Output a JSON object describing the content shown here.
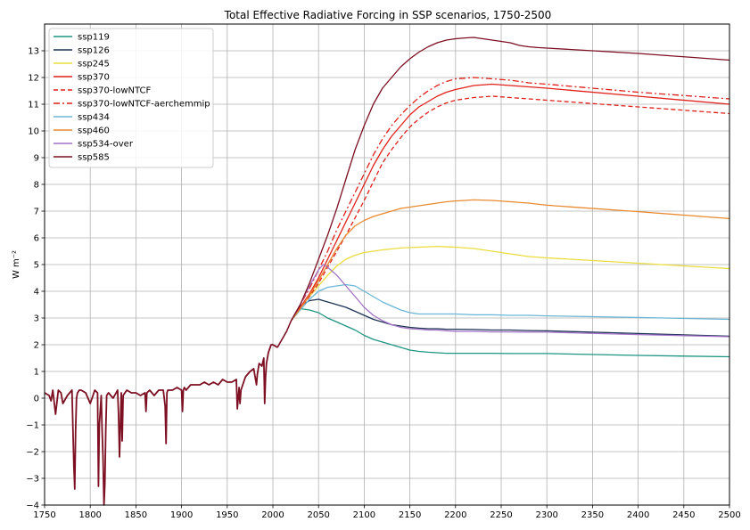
{
  "chart_data": {
    "type": "line",
    "title": "Total Effective Radiative Forcing in SSP scenarios, 1750-2500",
    "xlabel": "",
    "ylabel": "W m⁻²",
    "xlim": [
      1750,
      2500
    ],
    "ylim": [
      -4,
      14
    ],
    "xticks": [
      1750,
      1800,
      1850,
      1900,
      1950,
      2000,
      2050,
      2100,
      2150,
      2200,
      2250,
      2300,
      2350,
      2400,
      2450,
      2500
    ],
    "yticks": [
      -4,
      -3,
      -2,
      -1,
      0,
      1,
      2,
      3,
      4,
      5,
      6,
      7,
      8,
      9,
      10,
      11,
      12,
      13
    ],
    "ytick_labels": [
      "−4",
      "−3",
      "−2",
      "−1",
      "0",
      "1",
      "2",
      "3",
      "4",
      "5",
      "6",
      "7",
      "8",
      "9",
      "10",
      "11",
      "12",
      "13"
    ],
    "grid": true,
    "legend_position": "upper-left",
    "historical": {
      "x": [
        1750,
        1755,
        1757,
        1759,
        1762,
        1765,
        1768,
        1770,
        1775,
        1780,
        1782,
        1783,
        1784,
        1785,
        1786,
        1788,
        1790,
        1795,
        1800,
        1805,
        1808,
        1809,
        1810,
        1812,
        1813,
        1814,
        1815,
        1816,
        1817,
        1818,
        1820,
        1825,
        1830,
        1831,
        1832,
        1834,
        1835,
        1836,
        1838,
        1840,
        1845,
        1850,
        1855,
        1860,
        1861,
        1862,
        1865,
        1870,
        1875,
        1880,
        1882,
        1883,
        1884,
        1885,
        1886,
        1890,
        1895,
        1900,
        1901,
        1902,
        1903,
        1905,
        1910,
        1915,
        1920,
        1925,
        1930,
        1935,
        1940,
        1945,
        1950,
        1955,
        1960,
        1961,
        1963,
        1964,
        1965,
        1968,
        1970,
        1975,
        1979,
        1982,
        1983,
        1985,
        1988,
        1990,
        1991,
        1992,
        1993,
        1995,
        1998,
        2000,
        2005
      ],
      "y": [
        0.2,
        0.1,
        -0.1,
        0.3,
        -0.6,
        0.3,
        0.2,
        -0.2,
        0.1,
        0.3,
        -2.5,
        -3.4,
        -1.2,
        0.0,
        0.2,
        0.3,
        0.3,
        0.2,
        -0.2,
        0.3,
        0.2,
        -3.3,
        -1.0,
        0.1,
        -1.2,
        -2.2,
        -4.0,
        -3.2,
        -1.2,
        0.1,
        0.2,
        0.0,
        0.3,
        -0.6,
        -2.2,
        0.2,
        -1.6,
        0.1,
        0.2,
        0.3,
        0.2,
        0.2,
        0.1,
        0.2,
        -0.5,
        0.2,
        0.3,
        0.1,
        0.3,
        0.3,
        -0.3,
        -1.7,
        0.2,
        0.3,
        0.3,
        0.3,
        0.4,
        0.3,
        -0.5,
        0.3,
        0.4,
        0.3,
        0.5,
        0.5,
        0.5,
        0.6,
        0.5,
        0.6,
        0.5,
        0.7,
        0.6,
        0.6,
        0.7,
        -0.4,
        0.4,
        -0.2,
        0.3,
        0.6,
        0.8,
        1.0,
        1.1,
        0.5,
        0.9,
        1.3,
        1.2,
        1.5,
        -0.2,
        0.8,
        1.3,
        1.7,
        2.0,
        2.0,
        1.9
      ]
    },
    "series": [
      {
        "name": "ssp119",
        "color": "#1e9583",
        "dash": "solid",
        "x": [
          2005,
          2010,
          2015,
          2020,
          2025,
          2030,
          2040,
          2050,
          2060,
          2070,
          2080,
          2090,
          2100,
          2110,
          2120,
          2130,
          2140,
          2150,
          2160,
          2170,
          2180,
          2190,
          2200,
          2220,
          2240,
          2260,
          2280,
          2300,
          2400,
          2500
        ],
        "y": [
          1.9,
          2.2,
          2.5,
          2.9,
          3.15,
          3.35,
          3.3,
          3.2,
          3.0,
          2.85,
          2.7,
          2.55,
          2.35,
          2.2,
          2.1,
          2.0,
          1.9,
          1.8,
          1.75,
          1.72,
          1.7,
          1.68,
          1.68,
          1.68,
          1.68,
          1.67,
          1.67,
          1.67,
          1.6,
          1.55
        ]
      },
      {
        "name": "ssp126",
        "color": "#1d3354",
        "dash": "solid",
        "x": [
          2005,
          2010,
          2015,
          2020,
          2025,
          2030,
          2040,
          2050,
          2060,
          2070,
          2080,
          2090,
          2100,
          2110,
          2120,
          2130,
          2140,
          2150,
          2160,
          2170,
          2180,
          2190,
          2200,
          2220,
          2240,
          2260,
          2280,
          2300,
          2400,
          2500
        ],
        "y": [
          1.9,
          2.2,
          2.5,
          2.9,
          3.2,
          3.45,
          3.65,
          3.7,
          3.6,
          3.5,
          3.4,
          3.25,
          3.1,
          2.95,
          2.85,
          2.75,
          2.7,
          2.65,
          2.62,
          2.6,
          2.6,
          2.58,
          2.58,
          2.57,
          2.55,
          2.55,
          2.53,
          2.52,
          2.42,
          2.32
        ]
      },
      {
        "name": "ssp245",
        "color": "#eadd3d",
        "dash": "solid",
        "x": [
          2005,
          2010,
          2015,
          2020,
          2030,
          2040,
          2050,
          2060,
          2070,
          2080,
          2090,
          2100,
          2110,
          2120,
          2140,
          2160,
          2180,
          2200,
          2220,
          2240,
          2260,
          2280,
          2300,
          2400,
          2500
        ],
        "y": [
          1.9,
          2.2,
          2.5,
          2.9,
          3.4,
          3.8,
          4.2,
          4.6,
          4.95,
          5.2,
          5.35,
          5.45,
          5.5,
          5.55,
          5.62,
          5.65,
          5.68,
          5.65,
          5.6,
          5.5,
          5.4,
          5.3,
          5.25,
          5.05,
          4.85
        ]
      },
      {
        "name": "ssp370",
        "color": "#e0201a",
        "dash": "solid",
        "x": [
          2005,
          2010,
          2015,
          2020,
          2030,
          2040,
          2050,
          2060,
          2070,
          2080,
          2090,
          2100,
          2110,
          2120,
          2130,
          2140,
          2150,
          2160,
          2170,
          2180,
          2190,
          2200,
          2220,
          2240,
          2260,
          2280,
          2300,
          2400,
          2500
        ],
        "y": [
          1.9,
          2.2,
          2.5,
          2.9,
          3.4,
          3.9,
          4.5,
          5.2,
          5.9,
          6.6,
          7.3,
          8.0,
          8.7,
          9.3,
          9.8,
          10.2,
          10.6,
          10.9,
          11.1,
          11.3,
          11.45,
          11.55,
          11.7,
          11.75,
          11.7,
          11.65,
          11.6,
          11.3,
          11.0
        ]
      },
      {
        "name": "ssp370-lowNTCF",
        "color": "#e0201a",
        "dash": "5,3",
        "x": [
          2005,
          2010,
          2015,
          2020,
          2030,
          2040,
          2050,
          2060,
          2070,
          2080,
          2090,
          2100,
          2110,
          2120,
          2130,
          2140,
          2150,
          2160,
          2170,
          2180,
          2190,
          2200,
          2220,
          2240,
          2260,
          2280,
          2300,
          2400,
          2500
        ],
        "y": [
          1.9,
          2.2,
          2.5,
          2.9,
          3.35,
          3.8,
          4.3,
          4.9,
          5.5,
          6.1,
          6.75,
          7.4,
          8.1,
          8.8,
          9.3,
          9.75,
          10.15,
          10.45,
          10.7,
          10.9,
          11.05,
          11.15,
          11.25,
          11.3,
          11.25,
          11.2,
          11.15,
          10.9,
          10.65
        ]
      },
      {
        "name": "ssp370-lowNTCF-aerchemmip",
        "color": "#e0201a",
        "dash": "7,3,2,3",
        "x": [
          2005,
          2010,
          2015,
          2020,
          2030,
          2040,
          2050,
          2060,
          2070,
          2080,
          2090,
          2100,
          2110,
          2120,
          2130,
          2140,
          2150,
          2160,
          2170,
          2180,
          2190,
          2200,
          2220,
          2240,
          2260,
          2280,
          2300,
          2400,
          2500
        ],
        "y": [
          1.9,
          2.2,
          2.5,
          2.9,
          3.5,
          4.1,
          4.8,
          5.5,
          6.3,
          7.0,
          7.7,
          8.4,
          9.1,
          9.7,
          10.2,
          10.6,
          10.95,
          11.25,
          11.5,
          11.7,
          11.85,
          11.95,
          12.0,
          11.95,
          11.9,
          11.8,
          11.75,
          11.45,
          11.2
        ]
      },
      {
        "name": "ssp434",
        "color": "#6ab6d6",
        "dash": "solid",
        "x": [
          2005,
          2010,
          2015,
          2020,
          2030,
          2040,
          2050,
          2060,
          2070,
          2080,
          2090,
          2100,
          2110,
          2120,
          2130,
          2140,
          2150,
          2160,
          2170,
          2180,
          2190,
          2200,
          2220,
          2240,
          2260,
          2280,
          2300,
          2400,
          2500
        ],
        "y": [
          1.9,
          2.2,
          2.5,
          2.9,
          3.3,
          3.7,
          4.0,
          4.15,
          4.2,
          4.25,
          4.2,
          4.0,
          3.8,
          3.6,
          3.45,
          3.3,
          3.2,
          3.15,
          3.15,
          3.15,
          3.15,
          3.15,
          3.12,
          3.12,
          3.1,
          3.1,
          3.08,
          3.02,
          2.95
        ]
      },
      {
        "name": "ssp460",
        "color": "#e88a30",
        "dash": "solid",
        "x": [
          2005,
          2010,
          2015,
          2020,
          2030,
          2040,
          2050,
          2060,
          2070,
          2080,
          2090,
          2100,
          2110,
          2120,
          2130,
          2140,
          2150,
          2160,
          2170,
          2180,
          2190,
          2200,
          2220,
          2240,
          2260,
          2280,
          2300,
          2400,
          2500
        ],
        "y": [
          1.9,
          2.2,
          2.5,
          2.9,
          3.35,
          3.85,
          4.4,
          5.0,
          5.6,
          6.1,
          6.45,
          6.65,
          6.8,
          6.9,
          7.0,
          7.1,
          7.15,
          7.2,
          7.25,
          7.3,
          7.35,
          7.38,
          7.42,
          7.4,
          7.35,
          7.3,
          7.22,
          6.98,
          6.72
        ]
      },
      {
        "name": "ssp534-over",
        "color": "#a372c7",
        "dash": "solid",
        "x": [
          2005,
          2010,
          2015,
          2020,
          2030,
          2040,
          2050,
          2055,
          2060,
          2070,
          2080,
          2090,
          2100,
          2110,
          2120,
          2130,
          2140,
          2150,
          2160,
          2170,
          2180,
          2190,
          2200,
          2220,
          2240,
          2260,
          2280,
          2300,
          2400,
          2500
        ],
        "y": [
          1.9,
          2.2,
          2.5,
          2.9,
          3.5,
          4.2,
          4.8,
          5.0,
          4.9,
          4.6,
          4.2,
          3.8,
          3.4,
          3.1,
          2.9,
          2.75,
          2.65,
          2.6,
          2.58,
          2.55,
          2.55,
          2.52,
          2.5,
          2.5,
          2.48,
          2.48,
          2.47,
          2.47,
          2.38,
          2.3
        ]
      },
      {
        "name": "ssp585",
        "color": "#7d0f22",
        "dash": "solid",
        "x": [
          2005,
          2010,
          2015,
          2020,
          2030,
          2040,
          2050,
          2060,
          2070,
          2080,
          2090,
          2100,
          2110,
          2120,
          2130,
          2140,
          2150,
          2160,
          2170,
          2180,
          2190,
          2200,
          2210,
          2220,
          2230,
          2240,
          2250,
          2260,
          2270,
          2280,
          2290,
          2300,
          2400,
          2500
        ],
        "y": [
          1.9,
          2.2,
          2.5,
          2.9,
          3.5,
          4.3,
          5.2,
          6.1,
          7.1,
          8.2,
          9.3,
          10.2,
          11.0,
          11.6,
          12.0,
          12.4,
          12.7,
          12.95,
          13.15,
          13.3,
          13.4,
          13.45,
          13.48,
          13.5,
          13.45,
          13.4,
          13.35,
          13.3,
          13.2,
          13.15,
          13.12,
          13.1,
          12.9,
          12.65
        ]
      }
    ]
  }
}
